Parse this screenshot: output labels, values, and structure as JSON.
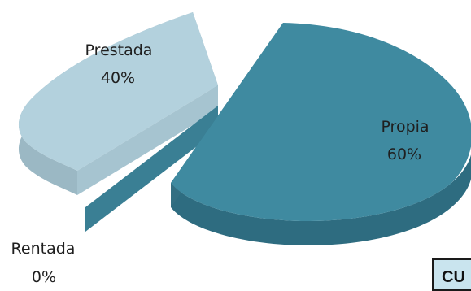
{
  "chart_data": {
    "type": "pie",
    "style": "3d-exploded",
    "slices": [
      {
        "label": "Propia",
        "value": 60,
        "display": "60%",
        "color": "#3f8aa0",
        "side_color": "#2e6c80"
      },
      {
        "label": "Prestada",
        "value": 40,
        "display": "40%",
        "color": "#b3d1dd",
        "side_color": "#9bb8c4"
      },
      {
        "label": "Rentada",
        "value": 0,
        "display": "0%",
        "color": "#3a7f94",
        "side_color": "#2e6c80"
      }
    ],
    "legend": "none"
  },
  "corner_box": {
    "text": "CU"
  }
}
